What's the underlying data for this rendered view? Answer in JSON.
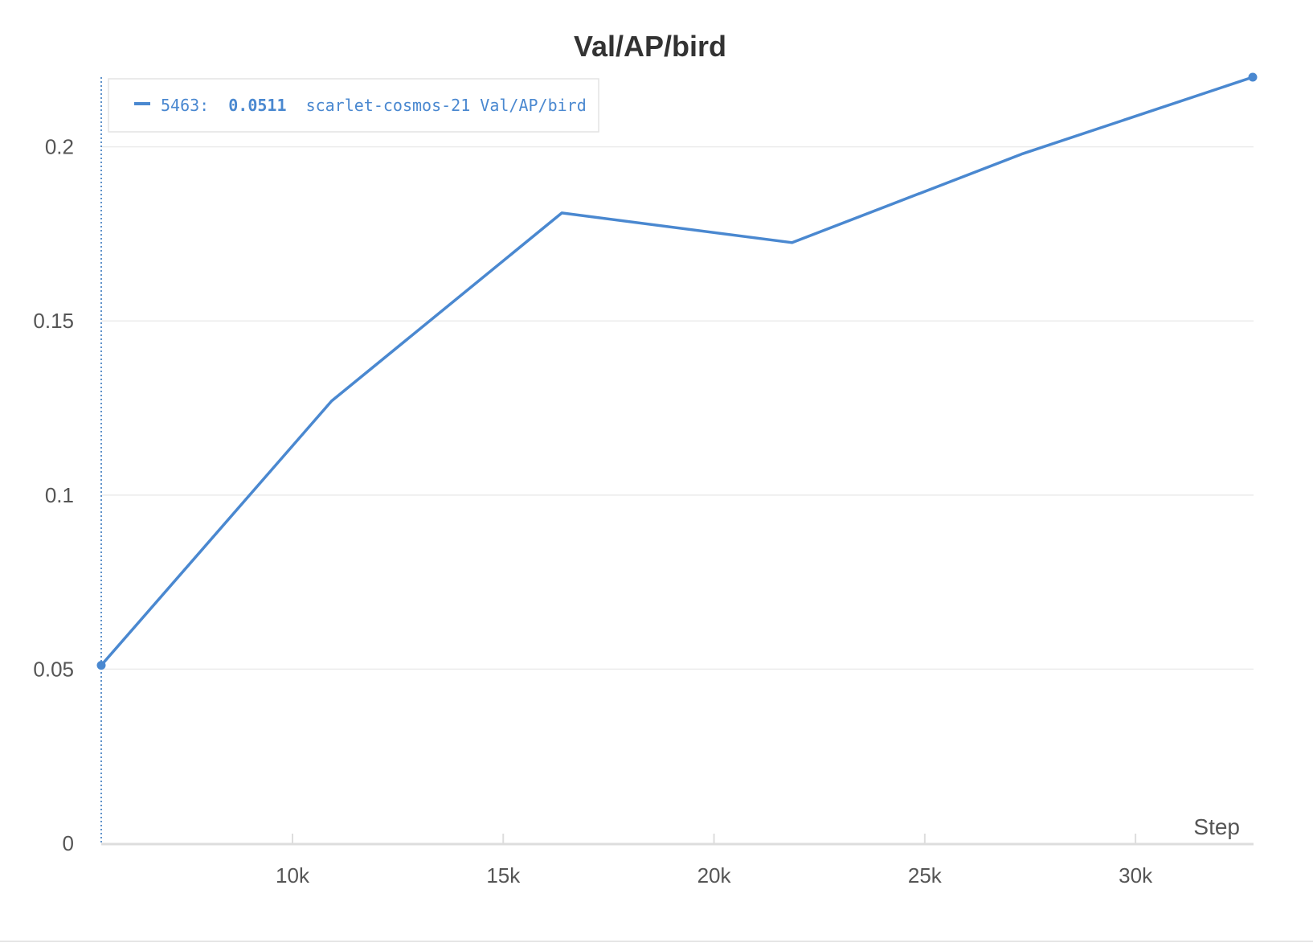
{
  "chart_data": {
    "type": "line",
    "title": "Val/AP/bird",
    "xlabel": "Step",
    "ylabel": "",
    "xlim": [
      5463,
      32800
    ],
    "ylim": [
      0,
      0.22
    ],
    "x_ticks": [
      10000,
      15000,
      20000,
      25000,
      30000
    ],
    "x_tick_labels": [
      "10k",
      "15k",
      "20k",
      "25k",
      "30k"
    ],
    "y_ticks": [
      0,
      0.05,
      0.1,
      0.15,
      0.2
    ],
    "y_tick_labels": [
      "0",
      "0.05",
      "0.1",
      "0.15",
      "0.2"
    ],
    "grid": true,
    "series": [
      {
        "name": "scarlet-cosmos-21 Val/AP/bird",
        "color": "#4a88d0",
        "x": [
          5463,
          10927,
          16390,
          21854,
          27317,
          32781
        ],
        "y": [
          0.0511,
          0.127,
          0.181,
          0.1725,
          0.198,
          0.22
        ]
      }
    ],
    "hover": {
      "step_label": "5463:",
      "value_label": "0.0511",
      "series_label": "scarlet-cosmos-21 Val/AP/bird"
    }
  }
}
